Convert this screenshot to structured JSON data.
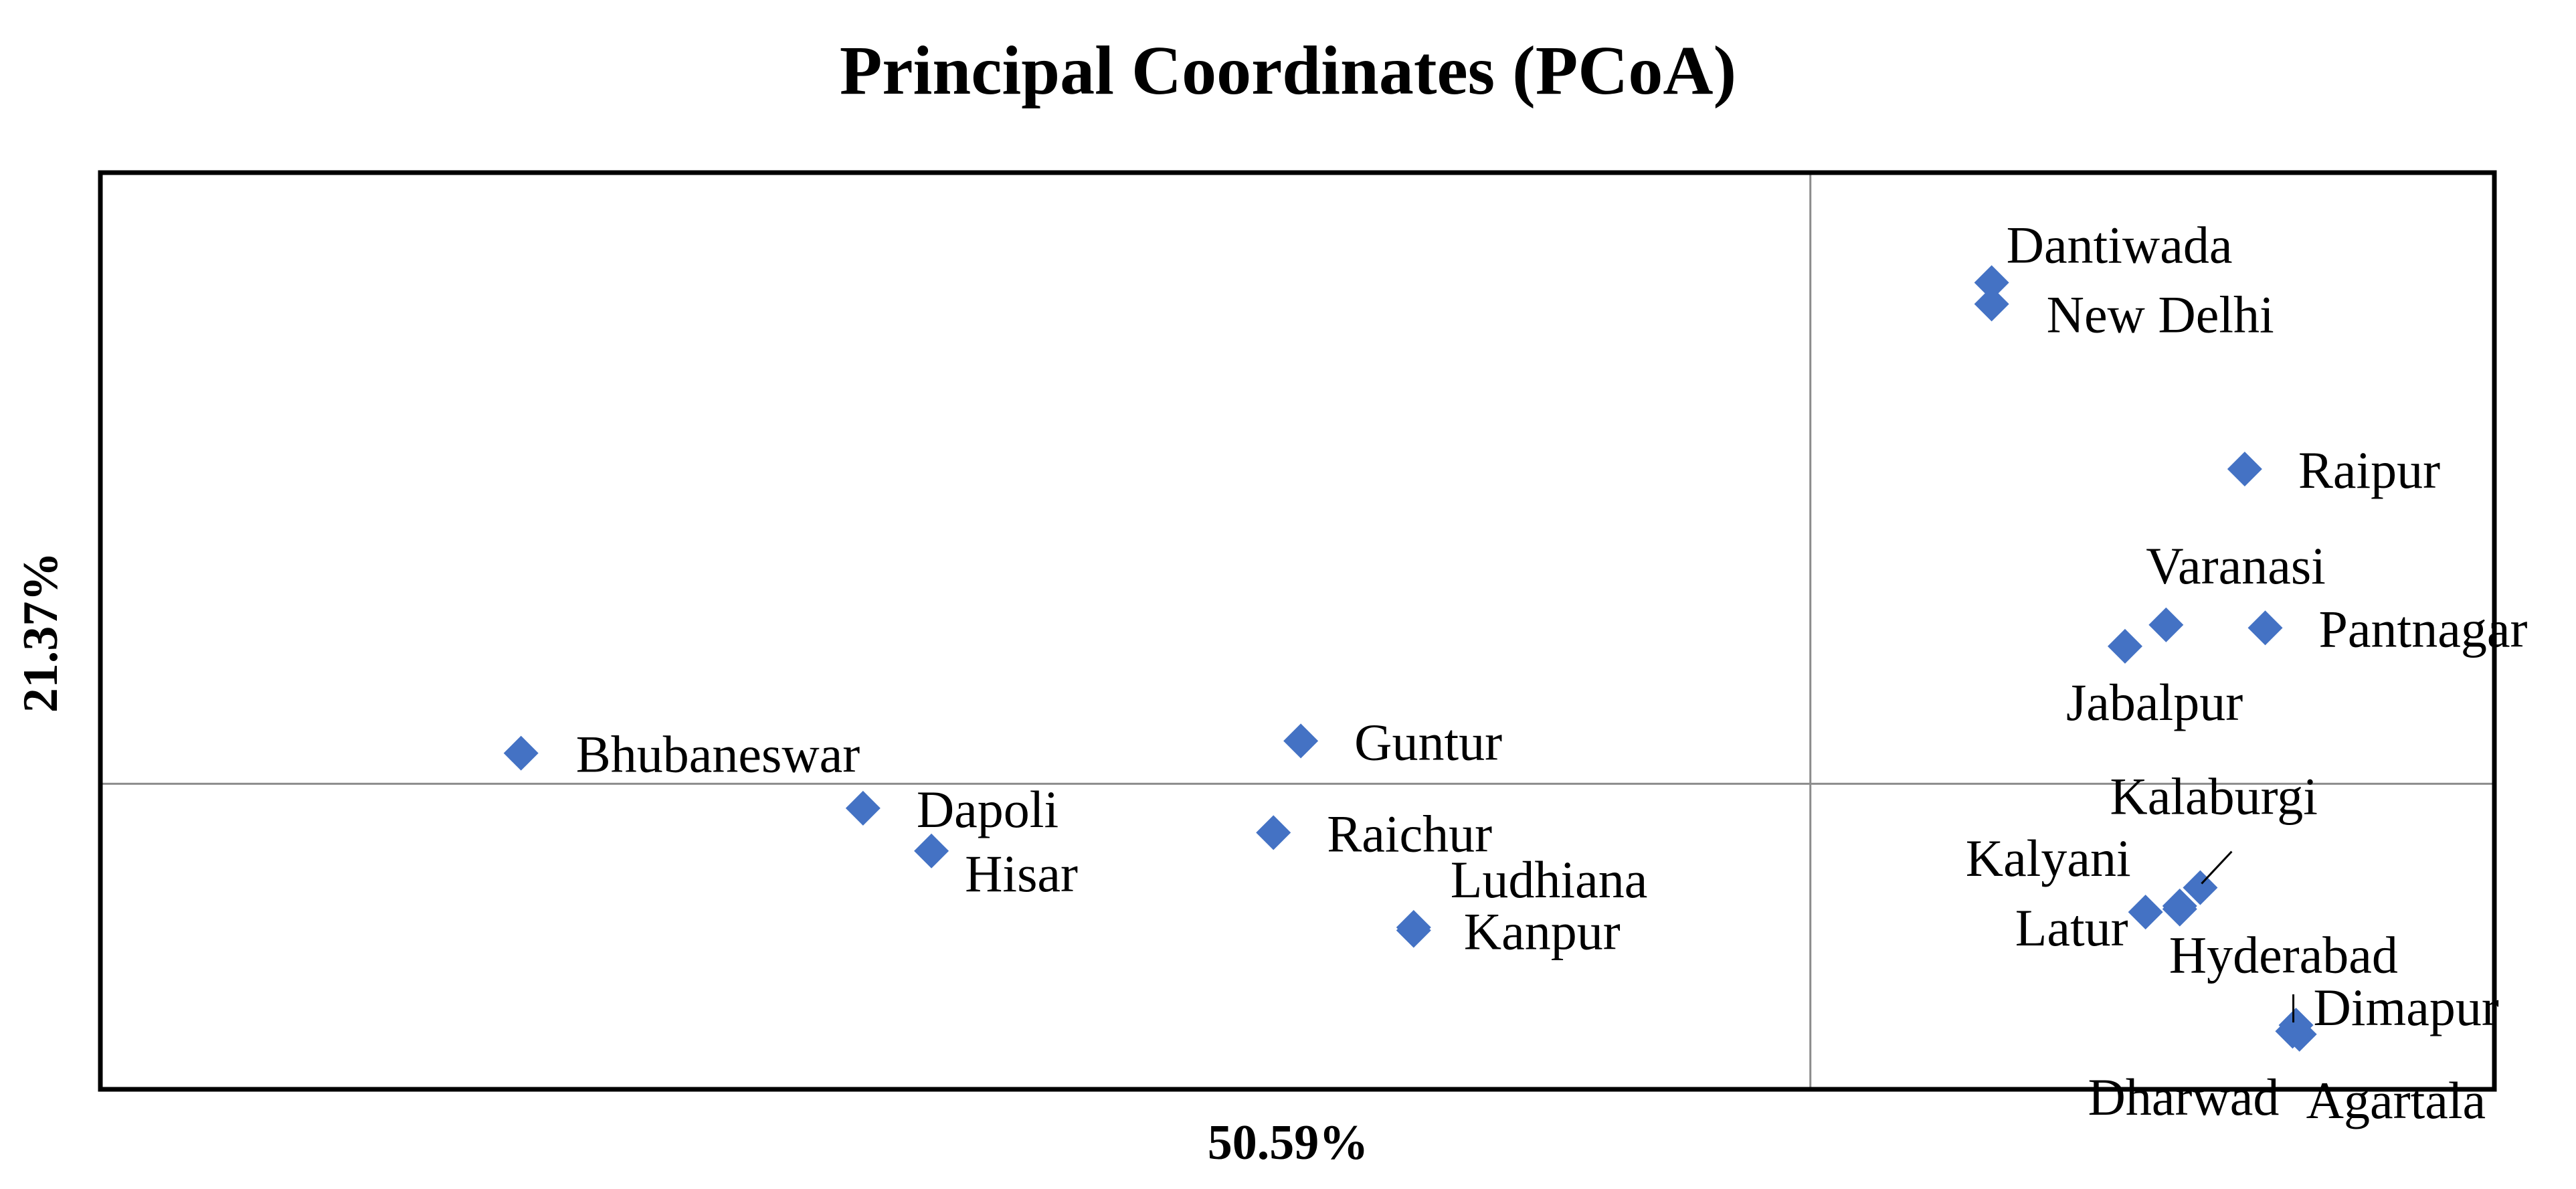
{
  "chart_data": {
    "type": "scatter",
    "title": "Principal Coordinates (PCoA)",
    "xlabel": "50.59%",
    "ylabel": "21.37%",
    "xlim": [
      -5.0,
      2.0
    ],
    "ylim": [
      -1.0,
      2.0
    ],
    "grid": false,
    "zero_lines": true,
    "marker": "diamond",
    "color": "#4472C4",
    "points": [
      {
        "label": "Dantiwada",
        "x": 0.53,
        "y": 1.64
      },
      {
        "label": "New Delhi",
        "x": 0.53,
        "y": 1.57
      },
      {
        "label": "Raipur",
        "x": 1.27,
        "y": 1.03
      },
      {
        "label": "Varanasi",
        "x": 1.04,
        "y": 0.52
      },
      {
        "label": "Pantnagar",
        "x": 1.33,
        "y": 0.51
      },
      {
        "label": "Jabalpur",
        "x": 0.92,
        "y": 0.45
      },
      {
        "label": "Bhubaneswar",
        "x": -3.77,
        "y": 0.1
      },
      {
        "label": "Guntur",
        "x": -1.49,
        "y": 0.14
      },
      {
        "label": "Dapoli",
        "x": -2.77,
        "y": -0.08
      },
      {
        "label": "Hisar",
        "x": -2.57,
        "y": -0.22
      },
      {
        "label": "Raichur",
        "x": -1.57,
        "y": -0.16
      },
      {
        "label": "Ludhiana",
        "x": -1.16,
        "y": -0.47
      },
      {
        "label": "Kanpur",
        "x": -1.16,
        "y": -0.48
      },
      {
        "label": "Kalaburgi",
        "x": 1.14,
        "y": -0.34
      },
      {
        "label": "Kalyani",
        "x": 1.08,
        "y": -0.4
      },
      {
        "label": "Latur",
        "x": 0.98,
        "y": -0.42
      },
      {
        "label": "Hyderabad",
        "x": 1.08,
        "y": -0.41
      },
      {
        "label": "Dimapur",
        "x": 1.42,
        "y": -0.79
      },
      {
        "label": "Dharwad",
        "x": 1.41,
        "y": -0.81
      },
      {
        "label": "Agartala",
        "x": 1.43,
        "y": -0.82
      }
    ]
  }
}
